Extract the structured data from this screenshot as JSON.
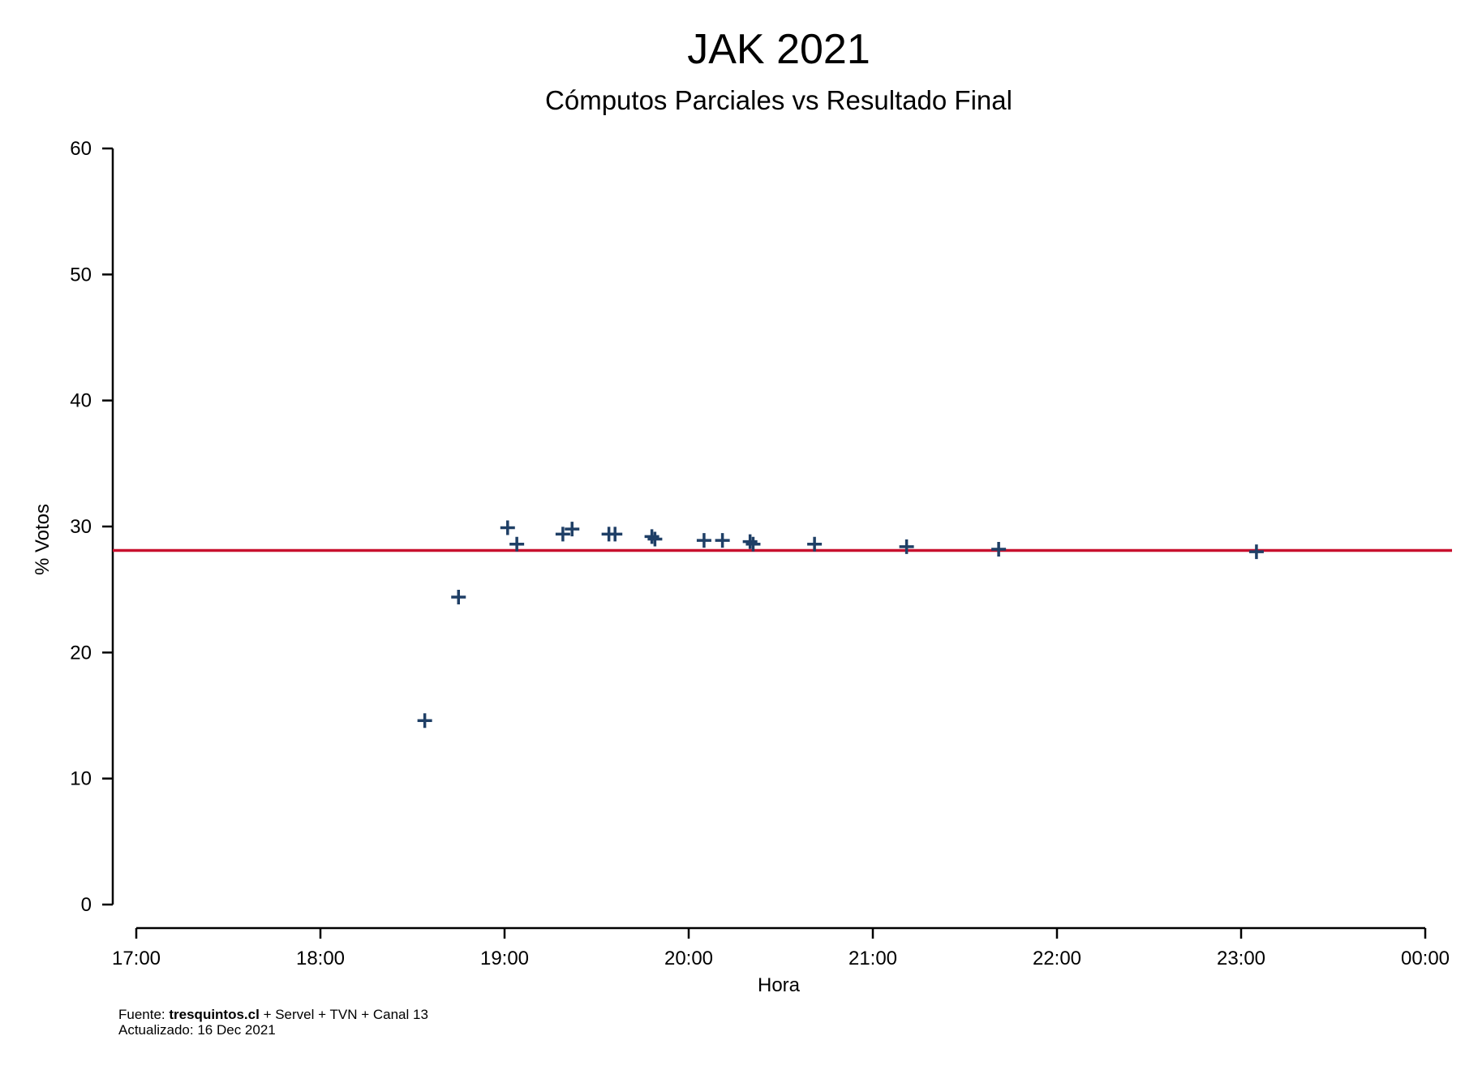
{
  "chart_data": {
    "type": "scatter",
    "title": "JAK 2021",
    "subtitle": "Cómputos Parciales vs Resultado Final",
    "xlabel": "Hora",
    "ylabel": "% Votos",
    "x_ticks": [
      "17:00",
      "18:00",
      "19:00",
      "20:00",
      "21:00",
      "22:00",
      "23:00",
      "00:00"
    ],
    "xlim": [
      "17:00",
      "00:00"
    ],
    "y_ticks": [
      0,
      10,
      20,
      30,
      40,
      50,
      60
    ],
    "ylim": [
      0,
      60
    ],
    "grid": false,
    "marker": "plus",
    "series": [
      {
        "color": "#1f3f66",
        "points": [
          {
            "x": "18:34",
            "y": 14.6
          },
          {
            "x": "18:45",
            "y": 24.4
          },
          {
            "x": "19:01",
            "y": 29.9
          },
          {
            "x": "19:04",
            "y": 28.6
          },
          {
            "x": "19:19",
            "y": 29.4
          },
          {
            "x": "19:22",
            "y": 29.8
          },
          {
            "x": "19:34",
            "y": 29.4
          },
          {
            "x": "19:36",
            "y": 29.4
          },
          {
            "x": "19:48",
            "y": 29.2
          },
          {
            "x": "19:49",
            "y": 29.0
          },
          {
            "x": "20:05",
            "y": 28.9
          },
          {
            "x": "20:11",
            "y": 28.9
          },
          {
            "x": "20:20",
            "y": 28.8
          },
          {
            "x": "20:21",
            "y": 28.6
          },
          {
            "x": "20:41",
            "y": 28.6
          },
          {
            "x": "21:11",
            "y": 28.4
          },
          {
            "x": "21:41",
            "y": 28.2
          },
          {
            "x": "23:05",
            "y": 28.0
          }
        ]
      }
    ],
    "reference_line": {
      "y": 28.1,
      "color": "#c8102e"
    }
  },
  "footer": {
    "source_prefix": "Fuente: ",
    "source_bold": "tresquintos.cl",
    "source_rest": " + Servel + TVN + Canal 13",
    "updated": "Actualizado: 16 Dec 2021"
  }
}
